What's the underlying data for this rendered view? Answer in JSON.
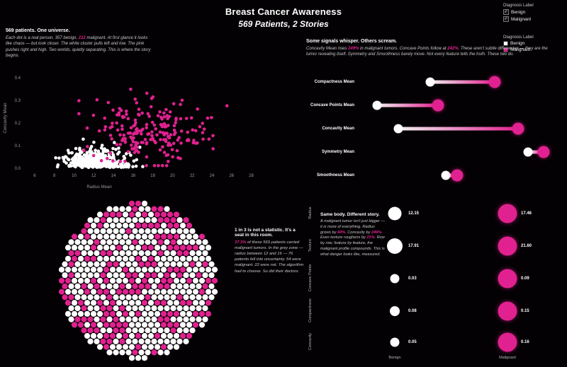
{
  "colors": {
    "background": "#040104",
    "magenta": "#e0218f",
    "benign_white": "#ffffff",
    "muted_text": "#c9c9c9",
    "axis_text": "#9a9a9a"
  },
  "header": {
    "title": "Breast Cancer Awareness",
    "subtitle": "569 Patients, 2 Stories"
  },
  "legend_filter": {
    "title": "Diagnosis Label",
    "items": [
      {
        "label": "Benign",
        "glyph": "✓",
        "checked": true
      },
      {
        "label": "Malignant",
        "glyph": "✓",
        "checked": true
      }
    ]
  },
  "legend_color": {
    "title": "Diagnosis Label",
    "items": [
      {
        "label": "Benign",
        "color": "#ffffff"
      },
      {
        "label": "Malignant",
        "color": "#e0218f"
      }
    ]
  },
  "story1": {
    "heading": "569 patients. One universe.",
    "body_segments": [
      {
        "t": "Each dot is a real person. 357 benign, "
      },
      {
        "t": "212",
        "c": true
      },
      {
        "t": " malignant. At first glance it looks like chaos — but look closer. The white cluster pulls left and low. The pink pushes right and high. Two worlds, quietly separating. This is where the story begins."
      }
    ]
  },
  "story2": {
    "heading": "Some signals whisper. Others scream.",
    "body_segments": [
      {
        "t": "Concavity Mean rises "
      },
      {
        "t": "249%",
        "c": true
      },
      {
        "t": " in malignant tumors. Concave Points follow at "
      },
      {
        "t": "242%",
        "c": true
      },
      {
        "t": ". These aren't subtle differences — they are the tumor revealing itself. Symmetry and Smoothness barely move. Not every feature tells the truth. These two do."
      }
    ]
  },
  "story3": {
    "heading": "1 in 3 is not a statistic. It's a seat in this room.",
    "body_segments": [
      {
        "t": "37.3%",
        "c": true
      },
      {
        "t": " of these 569 patients carried malignant tumors. In the grey zone — radius between 12 and 16 — 76 patients fell into uncertainty. 54 were malignant. 22 were not. The algorithm had to choose. So did their doctors."
      }
    ]
  },
  "story4": {
    "heading": "Same body. Different story.",
    "body_segments": [
      {
        "t": "A malignant tumor isn't just bigger — it is more of everything. Radius grows by "
      },
      {
        "t": "44%",
        "c": true
      },
      {
        "t": ". Concavity by "
      },
      {
        "t": "249%",
        "c": true
      },
      {
        "t": ". Even texture roughens by "
      },
      {
        "t": "21%",
        "c": true
      },
      {
        "t": ". Row by row, feature by feature, the malignant profile compounds. This is what danger looks like, measured."
      }
    ]
  },
  "chart_data": [
    {
      "type": "scatter",
      "title": "569 patients. One universe.",
      "xlabel": "Radius Mean",
      "ylabel": "Concavity Mean",
      "xlim": [
        5,
        33
      ],
      "ylim": [
        0,
        0.45
      ],
      "xticks": [
        6,
        8,
        10,
        12,
        14,
        16,
        18,
        20,
        22,
        24,
        26,
        28
      ],
      "yticks": [
        "0.0",
        "0.1",
        "0.2",
        "0.3",
        "0.4"
      ],
      "grid": false,
      "series": [
        {
          "name": "Benign",
          "color": "#ffffff",
          "n": 357,
          "radius_mean": 12.1,
          "radius_sd": 1.75,
          "concavity_mean": 0.046,
          "concavity_sd": 0.038
        },
        {
          "name": "Malignant",
          "color": "#e0218f",
          "n": 212,
          "radius_mean": 17.4,
          "radius_sd": 3.0,
          "concavity_mean": 0.16,
          "concavity_sd": 0.07
        }
      ]
    },
    {
      "type": "dumbbell",
      "series": [
        "Benign",
        "Malignant"
      ],
      "note": "positions are relative track percents (0-100)",
      "rows": [
        {
          "label": "Compactness Mean",
          "benign_pct": 35,
          "malignant_pct": 68
        },
        {
          "label": "Concave Points Mean",
          "benign_pct": 8,
          "malignant_pct": 39
        },
        {
          "label": "Concavity Mean",
          "benign_pct": 19,
          "malignant_pct": 80
        },
        {
          "label": "Symmetry Mean",
          "benign_pct": 85,
          "malignant_pct": 93
        },
        {
          "label": "Smoothness Mean",
          "benign_pct": 43,
          "malignant_pct": 49
        }
      ]
    },
    {
      "type": "unit-circle",
      "total": 569,
      "benign": 357,
      "malignant": 212,
      "malignant_pct": "37.3%"
    },
    {
      "type": "paired-circles",
      "columns": [
        "Benign",
        "Malignant"
      ],
      "rows": [
        {
          "label": "Radius",
          "benign": 12.15,
          "benign_text": "12.15",
          "malignant": 17.46,
          "malignant_text": "17.46"
        },
        {
          "label": "Texture",
          "benign": 17.91,
          "benign_text": "17.91",
          "malignant": 21.6,
          "malignant_text": "21.60"
        },
        {
          "label": "Concave Points",
          "benign": 0.03,
          "benign_text": "0.03",
          "malignant": 0.09,
          "malignant_text": "0.09"
        },
        {
          "label": "Compactness",
          "benign": 0.08,
          "benign_text": "0.08",
          "malignant": 0.15,
          "malignant_text": "0.15"
        },
        {
          "label": "Concavity",
          "benign": 0.05,
          "benign_text": "0.05",
          "malignant": 0.16,
          "malignant_text": "0.16"
        }
      ]
    }
  ]
}
